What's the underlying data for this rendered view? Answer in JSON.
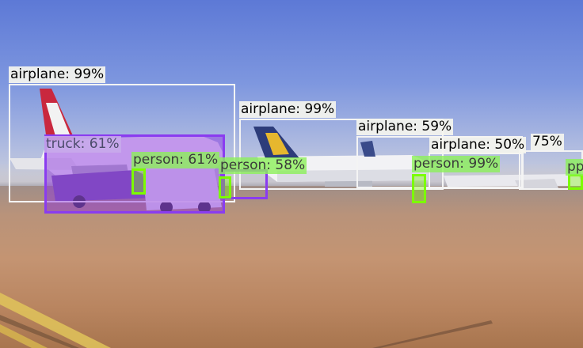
{
  "detections": [
    {
      "label": "airplane: 99%",
      "color": "#ffffff"
    },
    {
      "label": "airplane: 99%",
      "color": "#ffffff"
    },
    {
      "label": "airplane: 59%",
      "color": "#ffffff"
    },
    {
      "label": "airplane: 50%",
      "color": "#ffffff"
    },
    {
      "label": "75%",
      "color": "#ffffff"
    },
    {
      "label": "truck: 61%",
      "color": "#8a2be2"
    },
    {
      "label": "person: 61%",
      "color": "#7cfc00"
    },
    {
      "label": "person: 58%",
      "color": "#7cfc00"
    },
    {
      "label": "person: 99%",
      "color": "#7cfc00"
    },
    {
      "label": "pp",
      "color": "#7cfc00"
    }
  ]
}
